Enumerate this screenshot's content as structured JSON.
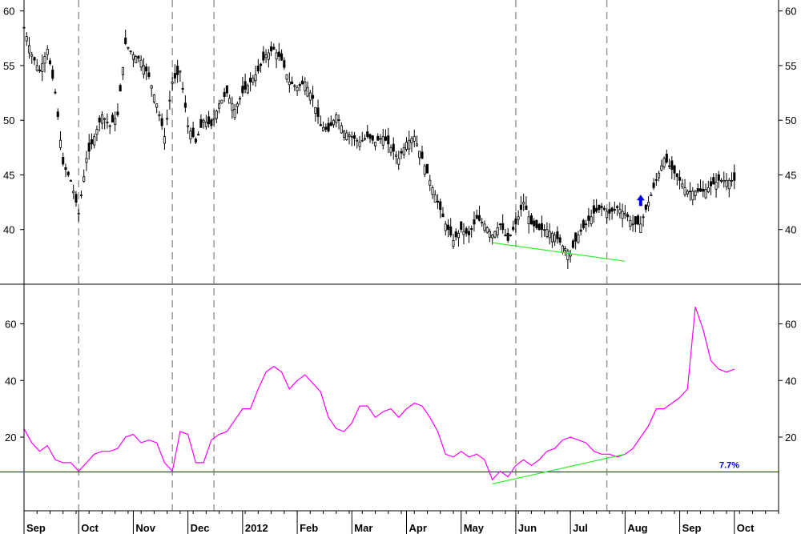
{
  "chart_data": [
    {
      "type": "candlestick",
      "panel": "price",
      "title": "",
      "ylim": [
        35,
        61
      ],
      "yticks": [
        40,
        45,
        50,
        55,
        60
      ],
      "grid": false,
      "x_axis": {
        "months": [
          "Sep",
          "Oct",
          "Nov",
          "Dec",
          "2012",
          "Feb",
          "Mar",
          "Apr",
          "May",
          "Jun",
          "Jul",
          "Aug",
          "Sep",
          "Oct"
        ],
        "month_days": [
          0,
          21,
          42,
          63,
          84,
          105,
          126,
          147,
          168,
          189,
          210,
          231,
          252,
          273
        ],
        "total_days": 290
      },
      "price_path": [
        [
          0,
          58.5
        ],
        [
          3,
          56
        ],
        [
          6,
          54.5
        ],
        [
          9,
          56.5
        ],
        [
          12,
          52.5
        ],
        [
          15,
          46
        ],
        [
          18,
          44.5
        ],
        [
          21,
          41.5
        ],
        [
          24,
          46.5
        ],
        [
          27,
          48.5
        ],
        [
          30,
          50.5
        ],
        [
          33,
          49.5
        ],
        [
          36,
          50.5
        ],
        [
          39,
          57
        ],
        [
          42,
          56
        ],
        [
          45,
          55.5
        ],
        [
          48,
          54
        ],
        [
          51,
          51.5
        ],
        [
          54,
          48.5
        ],
        [
          57,
          53.5
        ],
        [
          60,
          54.5
        ],
        [
          63,
          49.5
        ],
        [
          66,
          48
        ],
        [
          69,
          50
        ],
        [
          72,
          49.5
        ],
        [
          75,
          51.5
        ],
        [
          78,
          52.5
        ],
        [
          81,
          51
        ],
        [
          84,
          52.5
        ],
        [
          87,
          53.5
        ],
        [
          90,
          54.5
        ],
        [
          93,
          56
        ],
        [
          96,
          56.5
        ],
        [
          99,
          55.5
        ],
        [
          102,
          53.5
        ],
        [
          105,
          53
        ],
        [
          108,
          53.5
        ],
        [
          111,
          52
        ],
        [
          114,
          49.5
        ],
        [
          117,
          49
        ],
        [
          120,
          50.5
        ],
        [
          123,
          49
        ],
        [
          126,
          48.5
        ],
        [
          129,
          48
        ],
        [
          132,
          48.5
        ],
        [
          135,
          48
        ],
        [
          138,
          48.5
        ],
        [
          141,
          47.5
        ],
        [
          144,
          46.5
        ],
        [
          147,
          48
        ],
        [
          150,
          48.5
        ],
        [
          153,
          46.5
        ],
        [
          156,
          44.5
        ],
        [
          159,
          42.5
        ],
        [
          162,
          40.5
        ],
        [
          165,
          39
        ],
        [
          168,
          40
        ],
        [
          171,
          39.5
        ],
        [
          174,
          41
        ],
        [
          177,
          40.5
        ],
        [
          180,
          39.5
        ],
        [
          183,
          40.5
        ],
        [
          186,
          39
        ],
        [
          189,
          40.5
        ],
        [
          192,
          42.5
        ],
        [
          195,
          40.5
        ],
        [
          198,
          40
        ],
        [
          201,
          40
        ],
        [
          204,
          39.5
        ],
        [
          207,
          38.5
        ],
        [
          210,
          37.8
        ],
        [
          213,
          39.5
        ],
        [
          216,
          40.5
        ],
        [
          219,
          41.5
        ],
        [
          222,
          42
        ],
        [
          225,
          41.5
        ],
        [
          228,
          42
        ],
        [
          231,
          41.5
        ],
        [
          234,
          40.5
        ],
        [
          237,
          40.5
        ],
        [
          240,
          42.5
        ],
        [
          243,
          44.5
        ],
        [
          246,
          46.5
        ],
        [
          249,
          45.5
        ],
        [
          252,
          44.5
        ],
        [
          255,
          43.5
        ],
        [
          258,
          43.5
        ],
        [
          261,
          43.5
        ],
        [
          264,
          44
        ],
        [
          267,
          44.5
        ],
        [
          270,
          44.5
        ],
        [
          273,
          44.5
        ]
      ],
      "annotations": [
        {
          "kind": "trendline",
          "color": "#33ee33",
          "from": [
            180,
            38.8
          ],
          "to": [
            231,
            37.1
          ]
        },
        {
          "kind": "arrow-up",
          "color": "#0000ee",
          "at": [
            237,
            42.6
          ]
        }
      ]
    },
    {
      "type": "line",
      "panel": "oscillator",
      "title": "",
      "ylim": [
        -6,
        74
      ],
      "yticks": [
        20,
        40,
        60
      ],
      "grid": false,
      "series": [
        {
          "color": "#ff00ff",
          "points": [
            [
              0,
              23
            ],
            [
              3,
              18
            ],
            [
              6,
              15
            ],
            [
              9,
              17
            ],
            [
              12,
              12
            ],
            [
              15,
              11
            ],
            [
              18,
              11
            ],
            [
              21,
              8
            ],
            [
              24,
              11
            ],
            [
              27,
              14
            ],
            [
              30,
              15
            ],
            [
              33,
              15
            ],
            [
              36,
              16
            ],
            [
              39,
              20
            ],
            [
              42,
              21
            ],
            [
              45,
              18
            ],
            [
              48,
              19
            ],
            [
              51,
              18
            ],
            [
              54,
              11
            ],
            [
              57,
              8
            ],
            [
              60,
              22
            ],
            [
              63,
              21
            ],
            [
              66,
              11
            ],
            [
              69,
              11
            ],
            [
              72,
              19
            ],
            [
              75,
              21
            ],
            [
              78,
              22
            ],
            [
              81,
              26
            ],
            [
              84,
              30
            ],
            [
              87,
              30
            ],
            [
              90,
              37
            ],
            [
              93,
              43
            ],
            [
              96,
              45
            ],
            [
              99,
              43
            ],
            [
              102,
              37
            ],
            [
              105,
              40
            ],
            [
              108,
              42
            ],
            [
              111,
              39
            ],
            [
              114,
              36
            ],
            [
              117,
              27
            ],
            [
              120,
              23
            ],
            [
              123,
              22
            ],
            [
              126,
              25
            ],
            [
              129,
              31
            ],
            [
              132,
              31
            ],
            [
              135,
              27
            ],
            [
              138,
              29
            ],
            [
              141,
              30
            ],
            [
              144,
              27
            ],
            [
              147,
              30
            ],
            [
              150,
              32
            ],
            [
              153,
              31
            ],
            [
              156,
              27
            ],
            [
              159,
              22
            ],
            [
              162,
              14
            ],
            [
              165,
              13
            ],
            [
              168,
              15
            ],
            [
              171,
              13
            ],
            [
              174,
              14
            ],
            [
              177,
              12
            ],
            [
              180,
              5
            ],
            [
              183,
              8
            ],
            [
              186,
              6
            ],
            [
              189,
              10
            ],
            [
              192,
              12
            ],
            [
              195,
              10
            ],
            [
              198,
              12
            ],
            [
              201,
              15
            ],
            [
              204,
              16
            ],
            [
              207,
              19
            ],
            [
              210,
              20
            ],
            [
              213,
              19
            ],
            [
              216,
              18
            ],
            [
              219,
              15
            ],
            [
              222,
              14
            ],
            [
              225,
              14
            ],
            [
              228,
              13
            ],
            [
              231,
              14
            ],
            [
              234,
              16
            ],
            [
              237,
              20
            ],
            [
              240,
              24
            ],
            [
              243,
              30
            ],
            [
              246,
              30
            ],
            [
              249,
              32
            ],
            [
              252,
              34
            ],
            [
              255,
              37
            ],
            [
              258,
              66
            ],
            [
              261,
              58
            ],
            [
              264,
              47
            ],
            [
              267,
              44
            ],
            [
              270,
              43
            ],
            [
              273,
              44
            ]
          ]
        }
      ],
      "reference_line": {
        "value": 7.7,
        "label": "7.7%",
        "color": "#0000ee"
      },
      "annotations": [
        {
          "kind": "trendline",
          "color": "#33ee33",
          "from": [
            180,
            3.5
          ],
          "to": [
            231,
            14
          ]
        }
      ]
    }
  ],
  "vertical_markers_days": [
    21,
    57,
    73,
    189,
    224
  ]
}
